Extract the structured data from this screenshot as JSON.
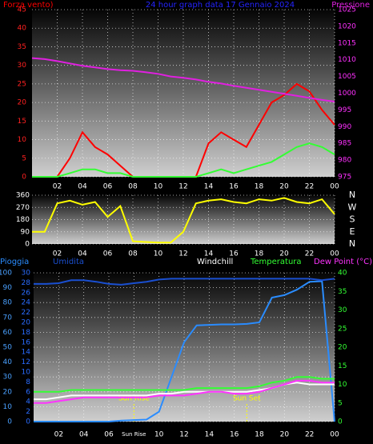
{
  "chart_data": [
    {
      "type": "line",
      "title": "24 hour graph data  17 Gennaio 2024",
      "x": [
        0,
        1,
        2,
        3,
        4,
        5,
        6,
        7,
        8,
        9,
        10,
        11,
        12,
        13,
        14,
        15,
        16,
        17,
        18,
        19,
        20,
        21,
        22,
        23,
        24
      ],
      "xlim": [
        0,
        24
      ],
      "xticks": [
        {
          "value": 2,
          "label": "02"
        },
        {
          "value": 4,
          "label": "04"
        },
        {
          "value": 6,
          "label": "06"
        },
        {
          "value": 8,
          "label": "08"
        },
        10,
        12,
        14,
        16,
        18,
        20,
        22,
        {
          "value": 24,
          "label": "00"
        }
      ],
      "ylim": [
        0,
        45
      ],
      "yticks": [
        0,
        5,
        10,
        15,
        20,
        25,
        30,
        35,
        40,
        45
      ],
      "ycolor": "#ff2020",
      "y2lim": [
        975,
        1025
      ],
      "y2ticks": [
        975,
        980,
        985,
        990,
        995,
        1000,
        1005,
        1010,
        1015,
        1020,
        1025
      ],
      "y2color": "#ff30ff",
      "grid": true,
      "series": [
        {
          "name": "Forza vento)",
          "color": "#ff0000",
          "values": [
            0,
            0,
            0,
            5,
            12,
            8,
            6,
            3,
            0,
            0,
            0,
            0,
            0,
            0,
            9,
            12,
            10,
            8,
            14,
            20,
            22,
            25,
            23,
            18,
            14
          ]
        },
        {
          "color": "#33ff33",
          "values": [
            0,
            0,
            0,
            1,
            2,
            2,
            1,
            1,
            0,
            0,
            0,
            0,
            0,
            0,
            1,
            2,
            1,
            2,
            3,
            4,
            6,
            8,
            9,
            8,
            6
          ]
        },
        {
          "name": "Pressione",
          "axis": "y2",
          "color": "#e020e0",
          "values": [
            1010.5,
            1010.2,
            1009.6,
            1008.9,
            1008.2,
            1007.7,
            1007.2,
            1006.9,
            1006.7,
            1006.3,
            1005.8,
            1005.0,
            1004.6,
            1004.1,
            1003.4,
            1002.9,
            1002.2,
            1001.6,
            1001.0,
            1000.4,
            999.8,
            999.2,
            998.6,
            998.0,
            997.5
          ]
        }
      ]
    },
    {
      "type": "line",
      "x": [
        0,
        1,
        2,
        3,
        4,
        5,
        6,
        7,
        8,
        9,
        10,
        11,
        12,
        13,
        14,
        15,
        16,
        17,
        18,
        19,
        20,
        21,
        22,
        23,
        24
      ],
      "xlim": [
        0,
        24
      ],
      "xticks": [
        {
          "value": 2,
          "label": "02"
        },
        {
          "value": 4,
          "label": "04"
        },
        {
          "value": 6,
          "label": "06"
        },
        {
          "value": 8,
          "label": "08"
        },
        10,
        12,
        14,
        16,
        18,
        20,
        22,
        {
          "value": 24,
          "label": "00"
        }
      ],
      "ylim": [
        0,
        360
      ],
      "yticks": [
        0,
        90,
        180,
        270,
        360
      ],
      "ycolor": "#ffffff",
      "y2lim": [
        0,
        360
      ],
      "y2ticks": [
        {
          "value": 0,
          "label": "N"
        },
        {
          "value": 90,
          "label": "E"
        },
        {
          "value": 180,
          "label": "S"
        },
        {
          "value": 270,
          "label": "W"
        },
        {
          "value": 360,
          "label": "N"
        }
      ],
      "y2color": "#ffffff",
      "grid": true,
      "series": [
        {
          "color": "#ffff00",
          "values": [
            90,
            90,
            300,
            320,
            290,
            310,
            200,
            280,
            20,
            15,
            10,
            10,
            90,
            300,
            320,
            330,
            310,
            300,
            330,
            320,
            340,
            310,
            300,
            330,
            220
          ]
        }
      ]
    },
    {
      "type": "line",
      "x": [
        0,
        1,
        2,
        3,
        4,
        5,
        6,
        7,
        8,
        9,
        10,
        11,
        12,
        13,
        14,
        15,
        16,
        17,
        18,
        19,
        20,
        21,
        22,
        23,
        24
      ],
      "xlim": [
        0,
        24
      ],
      "xticks": [
        {
          "value": 2,
          "label": "02"
        },
        {
          "value": 4,
          "label": "04"
        },
        {
          "value": 6,
          "label": "06"
        },
        {
          "value": 8,
          "label": "Sun Rise"
        },
        10,
        12,
        14,
        16,
        18,
        20,
        22,
        {
          "value": 24,
          "label": "00"
        }
      ],
      "ylim": [
        0,
        100
      ],
      "yticks": [
        0,
        10,
        20,
        30,
        40,
        50,
        60,
        70,
        80,
        90,
        100
      ],
      "ycolor": "#4aa0ff",
      "y3lim": [
        0,
        30
      ],
      "y3ticks": [
        0,
        2,
        4,
        6,
        8,
        10,
        12,
        14,
        16,
        18,
        20,
        22,
        24,
        26,
        28,
        30
      ],
      "y3color": "#2a6cff",
      "y2lim": [
        0,
        40
      ],
      "y2ticks": [
        0,
        5,
        10,
        15,
        20,
        25,
        30,
        35,
        40
      ],
      "y2color": "#33ff33",
      "grid": true,
      "annotations": [
        {
          "text": "Sun Rise",
          "x": 8
        },
        {
          "text": "Sun Set",
          "x": 17
        }
      ],
      "series": [
        {
          "name": "Pioggia",
          "axis": "y3",
          "color": "#2a8cff",
          "values": [
            0,
            0,
            0,
            0,
            0,
            0,
            0,
            0.2,
            0.3,
            0.4,
            2,
            9,
            16,
            19.4,
            19.5,
            19.6,
            19.6,
            19.7,
            20,
            25,
            25.5,
            26.6,
            28.2,
            28.3,
            0
          ]
        },
        {
          "name": "Umidita",
          "color": "#1a4fd0",
          "values": [
            92.5,
            92.5,
            93,
            95,
            95,
            94,
            92.5,
            92,
            93,
            94,
            95.5,
            96,
            96,
            96,
            96,
            96,
            96,
            96,
            96,
            96,
            96,
            96,
            96,
            95,
            96
          ]
        },
        {
          "name": "Windchill",
          "axis": "y2",
          "color": "#ffffff",
          "values": [
            6,
            6,
            6.5,
            7,
            7,
            7,
            7,
            7,
            7,
            7,
            7.5,
            7.5,
            8,
            8,
            8,
            8,
            8,
            8,
            8.5,
            9,
            10,
            10.5,
            10,
            10,
            10
          ]
        },
        {
          "name": "Temperatura",
          "axis": "y2",
          "color": "#33ff33",
          "values": [
            8,
            8,
            8,
            8.5,
            8.5,
            8.5,
            8.5,
            8.5,
            8.5,
            8.5,
            8.5,
            8.5,
            8.5,
            9,
            9,
            9,
            9,
            9,
            9.5,
            10.5,
            11,
            12,
            12,
            11.5,
            11.5
          ]
        },
        {
          "name": "Dew Point (°C)",
          "axis": "y2",
          "color": "#ff33ff",
          "values": [
            5,
            5,
            5.5,
            6,
            6.5,
            6.5,
            6.5,
            6.5,
            6.5,
            6.5,
            7,
            7,
            7,
            7.5,
            8,
            8,
            7.5,
            7.5,
            8,
            9,
            10,
            11,
            11,
            10.5,
            10.5
          ]
        }
      ]
    }
  ]
}
